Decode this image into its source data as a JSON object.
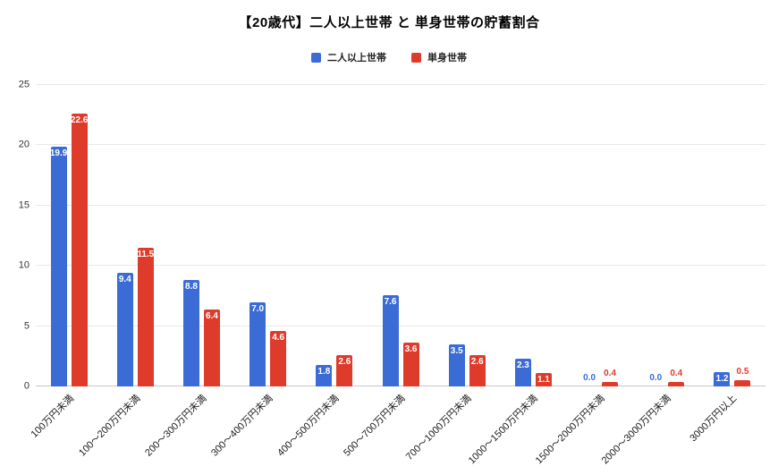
{
  "title": "【20歳代】二人以上世帯 と 単身世帯の貯蓄割合",
  "chart_data": {
    "type": "bar",
    "title": "【20歳代】二人以上世帯 と 単身世帯の貯蓄割合",
    "categories": [
      "100万円未満",
      "100〜200万円未満",
      "200〜300万円未満",
      "300〜400万円未満",
      "400〜500万円未満",
      "500〜700万円未満",
      "700〜1000万円未満",
      "1000〜1500万円未満",
      "1500〜2000万円未満",
      "2000〜3000万円未満",
      "3000万円以上"
    ],
    "series": [
      {
        "name": "二人以上世帯",
        "color": "#3b6cd6",
        "values": [
          19.9,
          9.4,
          8.8,
          7.0,
          1.8,
          7.6,
          3.5,
          2.3,
          0.0,
          0.0,
          1.2
        ]
      },
      {
        "name": "単身世帯",
        "color": "#df3b2b",
        "values": [
          22.6,
          11.5,
          6.4,
          4.6,
          2.6,
          3.6,
          2.6,
          1.1,
          0.4,
          0.4,
          0.5
        ]
      }
    ],
    "xlabel": "",
    "ylabel": "",
    "ylim": [
      0,
      25
    ],
    "yticks": [
      0,
      5,
      10,
      15,
      20,
      25
    ],
    "grid": true,
    "legend_position": "top",
    "value_labels": true
  }
}
